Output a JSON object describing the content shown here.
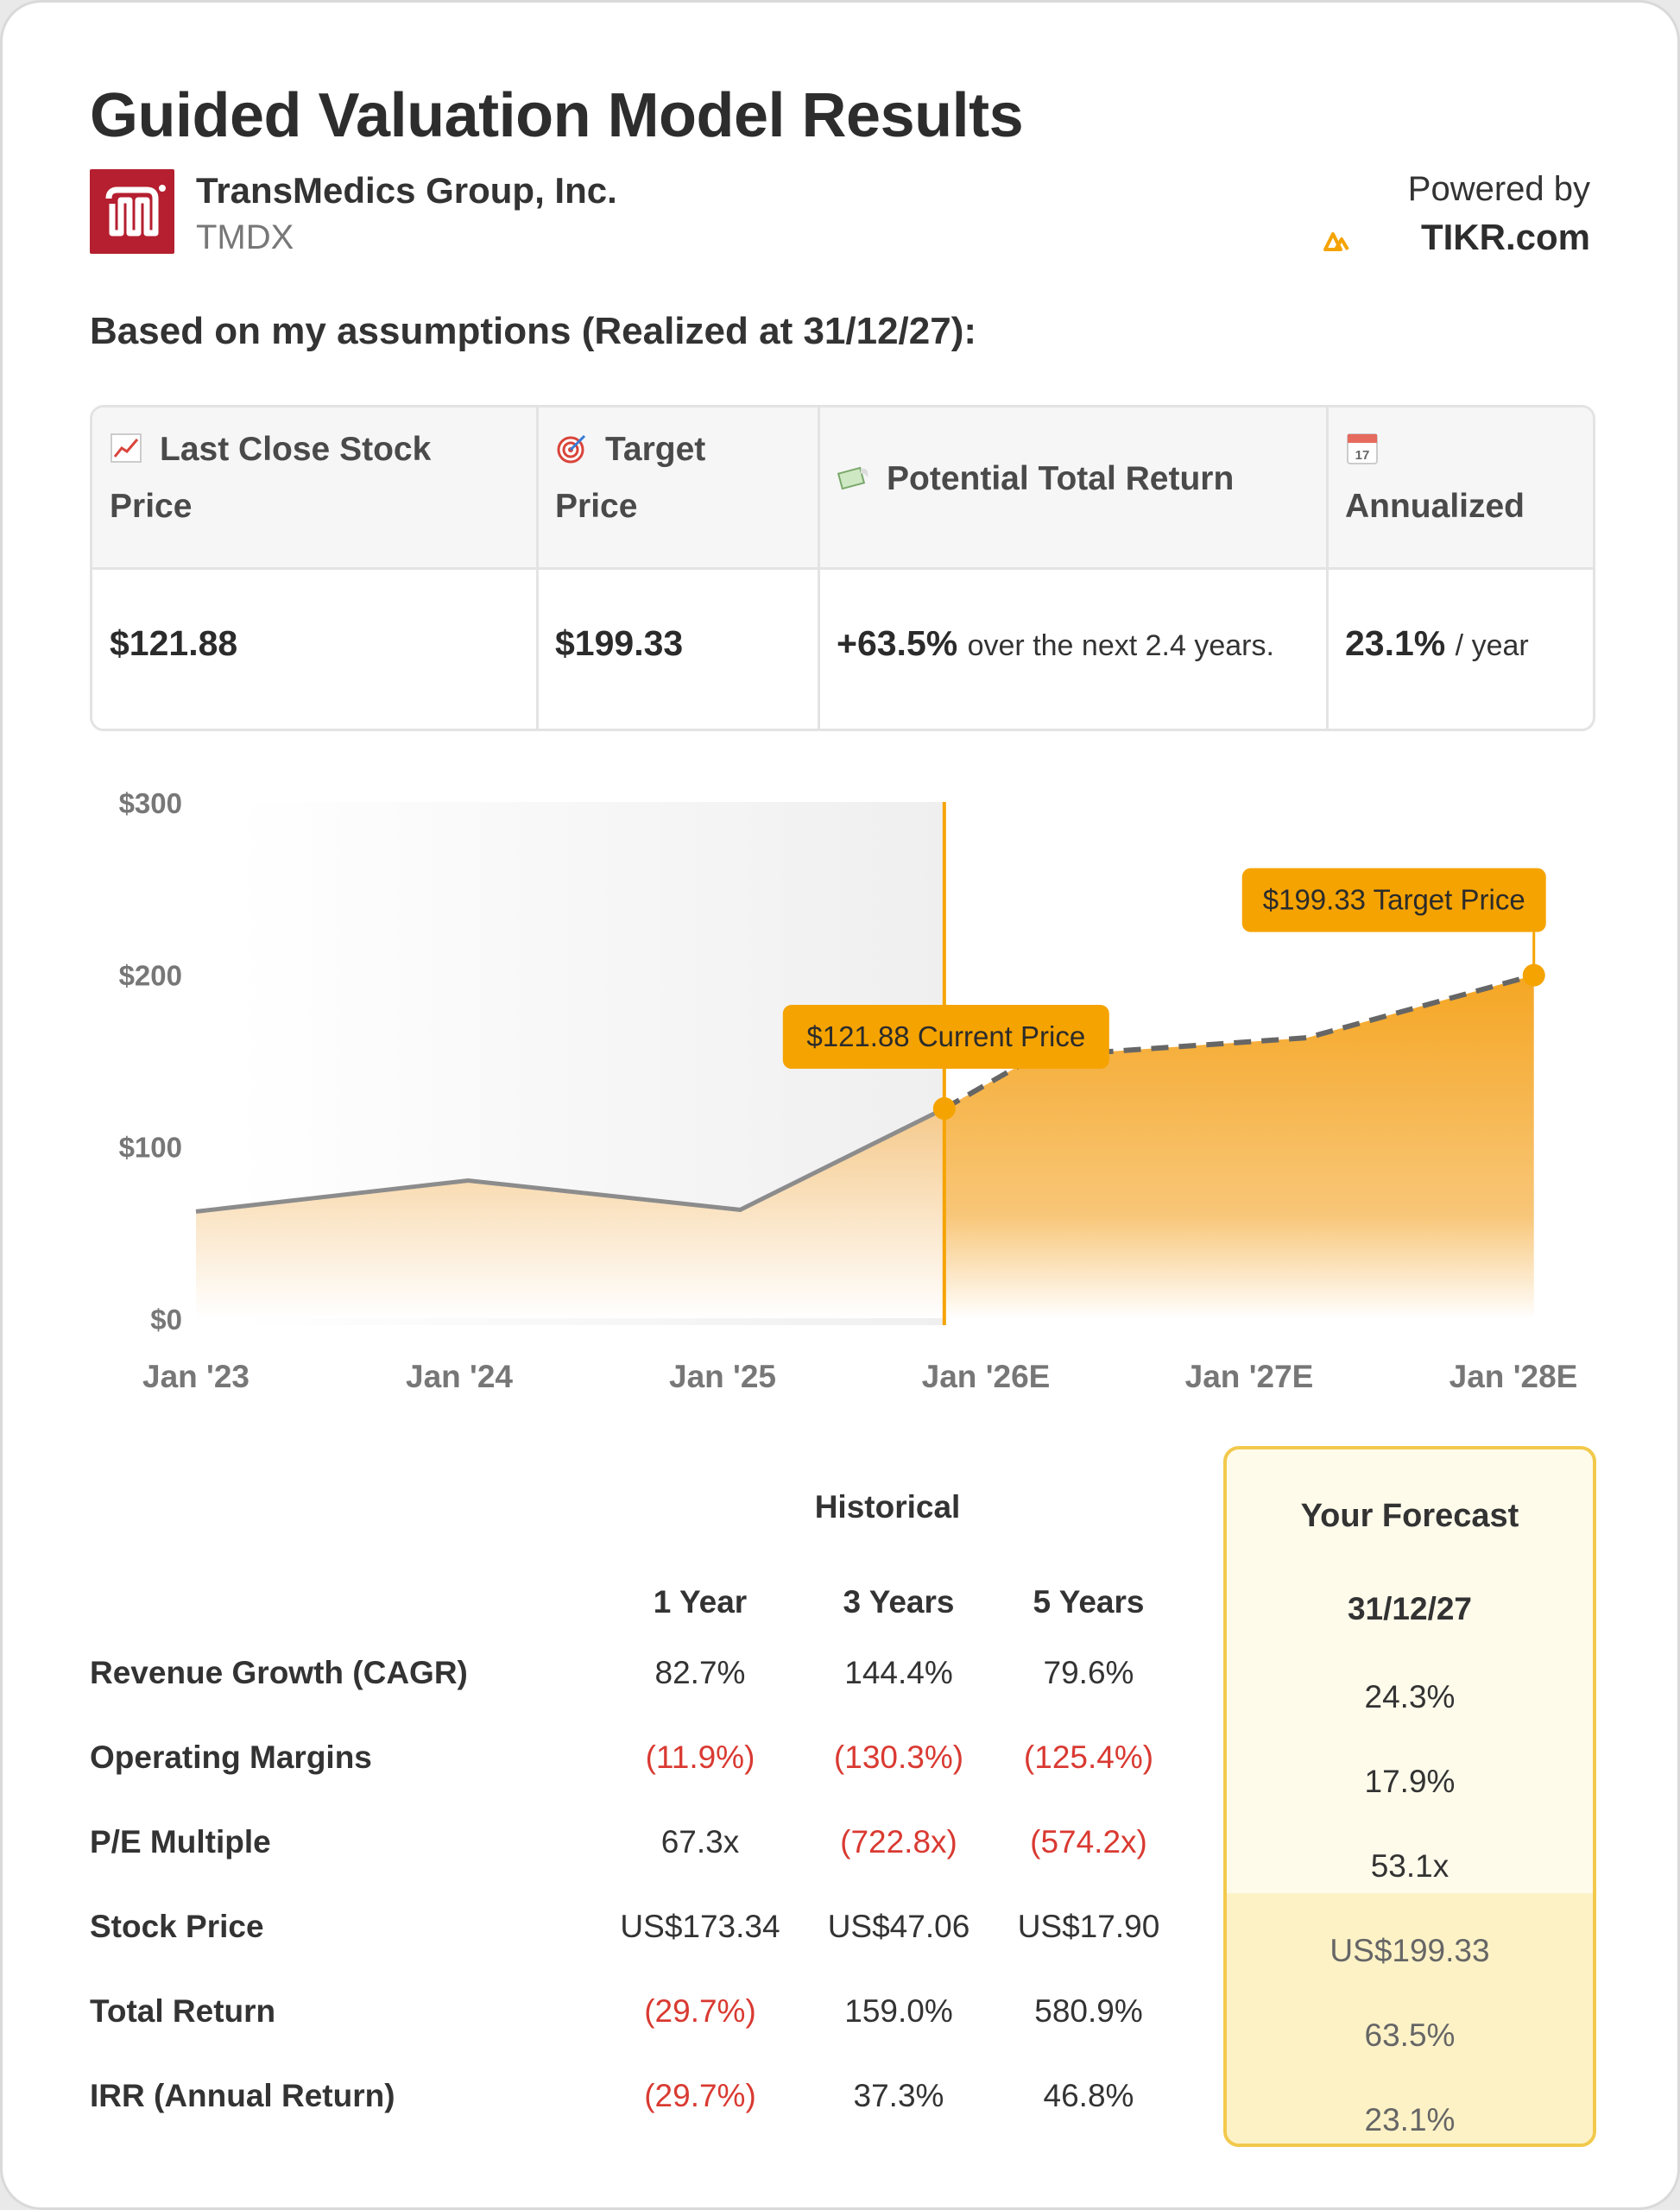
{
  "header": {
    "title": "Guided Valuation Model Results",
    "company_name": "TransMedics Group, Inc.",
    "ticker": "TMDX",
    "powered_by": "Powered by",
    "brand": "TIKR.com",
    "assumption_note": "Based on my assumptions (Realized at 31/12/27):"
  },
  "summary": {
    "columns": [
      {
        "icon": "chart-increasing-icon",
        "label_line1": "Last Close Stock",
        "label_line2": "Price",
        "value": "$121.88",
        "suffix": ""
      },
      {
        "icon": "target-icon",
        "label_line1": "Target",
        "label_line2": "Price",
        "value": "$199.33",
        "suffix": ""
      },
      {
        "icon": "money-wings-icon",
        "label_line1": "Potential Total Return",
        "label_line2": "",
        "value": "+63.5%",
        "suffix": "over the next 2.4 years."
      },
      {
        "icon": "calendar-icon",
        "label_line1": "",
        "label_line2": "Annualized",
        "value": "23.1%",
        "suffix": "/ year"
      }
    ]
  },
  "chart_data": {
    "type": "area",
    "x_labels": [
      "Jan '23",
      "Jan '24",
      "Jan '25",
      "Jan '26E",
      "Jan '27E",
      "Jan '28E"
    ],
    "y_ticks": [
      "$0",
      "$100",
      "$200",
      "$300"
    ],
    "ylim": [
      0,
      300
    ],
    "historical": [
      {
        "x": "2023-01",
        "y": 62
      },
      {
        "x": "2024-01",
        "y": 80
      },
      {
        "x": "2025-01",
        "y": 63
      },
      {
        "x": "2025-10",
        "y": 121.88
      }
    ],
    "forecast": [
      {
        "x": "2025-10",
        "y": 121.88
      },
      {
        "x": "2026-02",
        "y": 152
      },
      {
        "x": "2027-02",
        "y": 163
      },
      {
        "x": "2027-12",
        "y": 199.33
      }
    ],
    "annotations": {
      "current": "$121.88 Current Price",
      "target": "$199.33 Target Price"
    },
    "colors": {
      "accent": "#f5a300",
      "line": "#8c8c8c",
      "forecast_line": "#666666"
    }
  },
  "table": {
    "historical_title": "Historical",
    "columns": [
      "1 Year",
      "3 Years",
      "5 Years"
    ],
    "forecast_title": "Your Forecast",
    "forecast_date": "31/12/27",
    "rows": [
      {
        "label": "Revenue Growth (CAGR)",
        "values": [
          "82.7%",
          "144.4%",
          "79.6%"
        ],
        "forecast": "24.3%"
      },
      {
        "label": "Operating Margins",
        "values": [
          "(11.9%)",
          "(130.3%)",
          "(125.4%)"
        ],
        "forecast": "17.9%"
      },
      {
        "label": "P/E Multiple",
        "values": [
          "67.3x",
          "(722.8x)",
          "(574.2x)"
        ],
        "forecast": "53.1x"
      },
      {
        "label": "Stock Price",
        "values": [
          "US$173.34",
          "US$47.06",
          "US$17.90"
        ],
        "forecast": "US$199.33"
      },
      {
        "label": "Total Return",
        "values": [
          "(29.7%)",
          "159.0%",
          "580.9%"
        ],
        "forecast": "63.5%"
      },
      {
        "label": "IRR (Annual Return)",
        "values": [
          "(29.7%)",
          "37.3%",
          "46.8%"
        ],
        "forecast": "23.1%"
      }
    ]
  }
}
